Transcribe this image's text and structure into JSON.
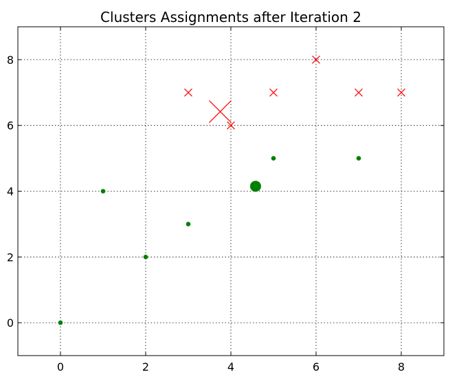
{
  "chart_data": {
    "type": "scatter",
    "title": "Clusters Assignments after Iteration 2",
    "xlabel": "",
    "ylabel": "",
    "xlim": [
      -1,
      9
    ],
    "ylim": [
      -1,
      9
    ],
    "xticks": [
      0,
      2,
      4,
      6,
      8
    ],
    "yticks": [
      0,
      2,
      4,
      6,
      8
    ],
    "grid": true,
    "grid_style": "dotted",
    "series": [
      {
        "marker": "dot",
        "color": "#008000",
        "points": [
          [
            0,
            0
          ],
          [
            1,
            4
          ],
          [
            2,
            2
          ],
          [
            3,
            3
          ],
          [
            5,
            5
          ],
          [
            7,
            5
          ]
        ]
      },
      {
        "marker": "x",
        "color": "#ff0000",
        "points": [
          [
            3,
            7
          ],
          [
            4,
            6
          ],
          [
            5,
            7
          ],
          [
            6,
            8
          ],
          [
            7,
            7
          ],
          [
            8,
            7
          ]
        ]
      }
    ],
    "centroids": [
      {
        "marker": "dot",
        "color": "#008000",
        "x": 4.58,
        "y": 4.15
      },
      {
        "marker": "x",
        "color": "#ff0000",
        "x": 3.75,
        "y": 6.42
      }
    ]
  }
}
